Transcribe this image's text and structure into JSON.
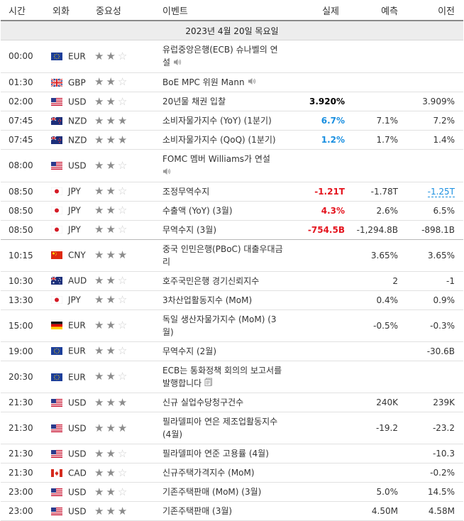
{
  "header": {
    "time": "시간",
    "currency": "외화",
    "importance": "중요성",
    "event": "이벤트",
    "actual": "실제",
    "forecast": "예측",
    "previous": "이전"
  },
  "date_label": "2023년 4월 20일 목요일",
  "events": [
    {
      "time": "00:00",
      "flag": "eu",
      "currency": "EUR",
      "stars": 2,
      "event": "유럽중앙은행(ECB) 슈나벨의 연설",
      "icon": "speaker",
      "actual": "",
      "actual_color": "",
      "forecast": "",
      "previous": "",
      "previous_revised": false
    },
    {
      "time": "01:30",
      "flag": "gb",
      "currency": "GBP",
      "stars": 2,
      "event": "BoE MPC 위원 Mann",
      "icon": "speaker",
      "actual": "",
      "actual_color": "",
      "forecast": "",
      "previous": "",
      "previous_revised": false
    },
    {
      "time": "02:00",
      "flag": "us",
      "currency": "USD",
      "stars": 2,
      "event": "20년물 채권 입찰",
      "icon": "",
      "actual": "3.920%",
      "actual_color": "black",
      "forecast": "",
      "previous": "3.909%",
      "previous_revised": false
    },
    {
      "time": "07:45",
      "flag": "nz",
      "currency": "NZD",
      "stars": 3,
      "event": "소비자물가지수 (YoY) (1분기)",
      "icon": "",
      "actual": "6.7%",
      "actual_color": "blue",
      "forecast": "7.1%",
      "previous": "7.2%",
      "previous_revised": false
    },
    {
      "time": "07:45",
      "flag": "nz",
      "currency": "NZD",
      "stars": 3,
      "event": "소비자물가지수 (QoQ) (1분기)",
      "icon": "",
      "actual": "1.2%",
      "actual_color": "blue",
      "forecast": "1.7%",
      "previous": "1.4%",
      "previous_revised": false
    },
    {
      "time": "08:00",
      "flag": "us",
      "currency": "USD",
      "stars": 2,
      "event": "FOMC 멤버 Williams가 연설",
      "icon": "speaker-below",
      "actual": "",
      "actual_color": "",
      "forecast": "",
      "previous": "",
      "previous_revised": false
    },
    {
      "time": "08:50",
      "flag": "jp",
      "currency": "JPY",
      "stars": 2,
      "event": "조정무역수지",
      "icon": "",
      "actual": "-1.21T",
      "actual_color": "red",
      "forecast": "-1.78T",
      "previous": "-1.25T",
      "previous_revised": true
    },
    {
      "time": "08:50",
      "flag": "jp",
      "currency": "JPY",
      "stars": 2,
      "event": "수출액 (YoY) (3월)",
      "icon": "",
      "actual": "4.3%",
      "actual_color": "red",
      "forecast": "2.6%",
      "previous": "6.5%",
      "previous_revised": false
    },
    {
      "time": "08:50",
      "flag": "jp",
      "currency": "JPY",
      "stars": 2,
      "event": "무역수지 (3월)",
      "icon": "",
      "actual": "-754.5B",
      "actual_color": "red",
      "forecast": "-1,294.8B",
      "previous": "-898.1B",
      "previous_revised": false,
      "separator": true
    },
    {
      "time": "10:15",
      "flag": "cn",
      "currency": "CNY",
      "stars": 3,
      "event": "중국 인민은행(PBoC) 대출우대금리",
      "icon": "",
      "actual": "",
      "actual_color": "",
      "forecast": "3.65%",
      "previous": "3.65%",
      "previous_revised": false
    },
    {
      "time": "10:30",
      "flag": "au",
      "currency": "AUD",
      "stars": 2,
      "event": "호주국민은행 경기신뢰지수",
      "icon": "",
      "actual": "",
      "actual_color": "",
      "forecast": "2",
      "previous": "-1",
      "previous_revised": false
    },
    {
      "time": "13:30",
      "flag": "jp",
      "currency": "JPY",
      "stars": 2,
      "event": "3차산업활동지수 (MoM)",
      "icon": "",
      "actual": "",
      "actual_color": "",
      "forecast": "0.4%",
      "previous": "0.9%",
      "previous_revised": false
    },
    {
      "time": "15:00",
      "flag": "de",
      "currency": "EUR",
      "stars": 2,
      "event": "독일 생산자물가지수 (MoM) (3월)",
      "icon": "",
      "actual": "",
      "actual_color": "",
      "forecast": "-0.5%",
      "previous": "-0.3%",
      "previous_revised": false
    },
    {
      "time": "19:00",
      "flag": "eu",
      "currency": "EUR",
      "stars": 2,
      "event": "무역수지 (2월)",
      "icon": "",
      "actual": "",
      "actual_color": "",
      "forecast": "",
      "previous": "-30.6B",
      "previous_revised": false
    },
    {
      "time": "20:30",
      "flag": "eu",
      "currency": "EUR",
      "stars": 2,
      "event": "ECB는 통화정책 회의의 보고서를 발행합니다",
      "icon": "document",
      "actual": "",
      "actual_color": "",
      "forecast": "",
      "previous": "",
      "previous_revised": false
    },
    {
      "time": "21:30",
      "flag": "us",
      "currency": "USD",
      "stars": 3,
      "event": "신규 실업수당청구건수",
      "icon": "",
      "actual": "",
      "actual_color": "",
      "forecast": "240K",
      "previous": "239K",
      "previous_revised": false
    },
    {
      "time": "21:30",
      "flag": "us",
      "currency": "USD",
      "stars": 3,
      "event": "필라델피아 연은 제조업활동지수 (4월)",
      "icon": "",
      "actual": "",
      "actual_color": "",
      "forecast": "-19.2",
      "previous": "-23.2",
      "previous_revised": false
    },
    {
      "time": "21:30",
      "flag": "us",
      "currency": "USD",
      "stars": 2,
      "event": "필라델피아 연준 고용률 (4월)",
      "icon": "",
      "actual": "",
      "actual_color": "",
      "forecast": "",
      "previous": "-10.3",
      "previous_revised": false
    },
    {
      "time": "21:30",
      "flag": "ca",
      "currency": "CAD",
      "stars": 2,
      "event": "신규주택가격지수 (MoM)",
      "icon": "",
      "actual": "",
      "actual_color": "",
      "forecast": "",
      "previous": "-0.2%",
      "previous_revised": false
    },
    {
      "time": "23:00",
      "flag": "us",
      "currency": "USD",
      "stars": 2,
      "event": "기존주택판매 (MoM) (3월)",
      "icon": "",
      "actual": "",
      "actual_color": "",
      "forecast": "5.0%",
      "previous": "14.5%",
      "previous_revised": false
    },
    {
      "time": "23:00",
      "flag": "us",
      "currency": "USD",
      "stars": 3,
      "event": "기존주택판매 (3월)",
      "icon": "",
      "actual": "",
      "actual_color": "",
      "forecast": "4.50M",
      "previous": "4.58M",
      "previous_revised": false
    }
  ]
}
